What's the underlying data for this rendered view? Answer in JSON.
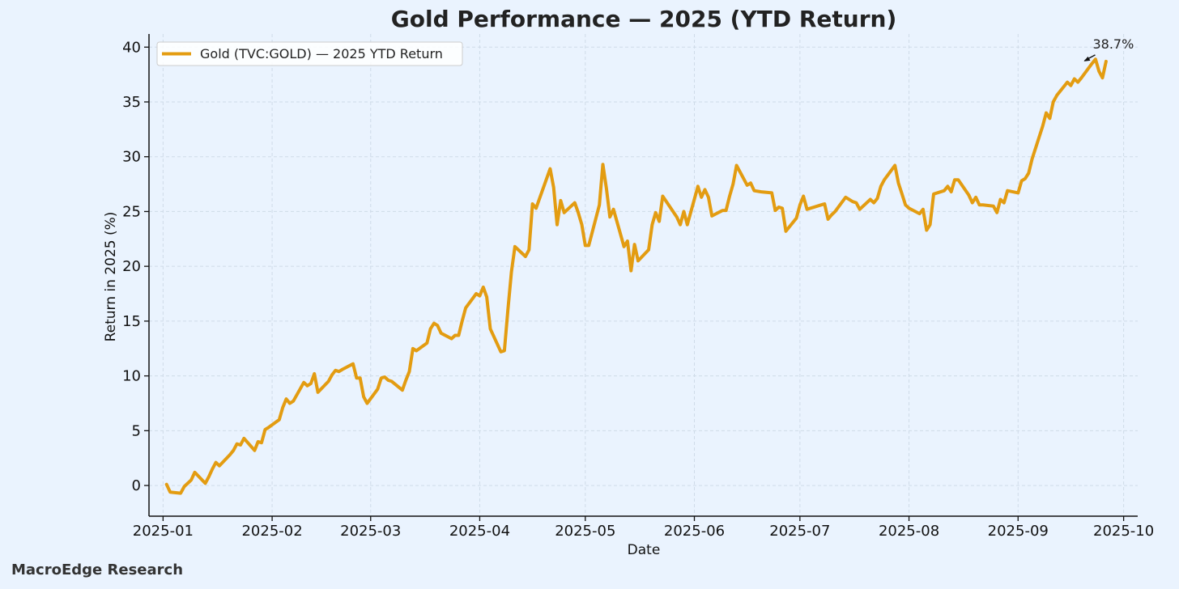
{
  "footer": {
    "text": "MacroEdge Research"
  },
  "chart_data": {
    "type": "line",
    "title": "Gold Performance — 2025 (YTD Return)",
    "xlabel": "Date",
    "ylabel": "Return in 2025 (%)",
    "ylim": [
      -2.8,
      41.2
    ],
    "xlim": [
      "2024-12-28",
      "2025-10-05"
    ],
    "x_ticks": [
      "2025-01-01",
      "2025-02-01",
      "2025-03-01",
      "2025-04-01",
      "2025-05-01",
      "2025-06-01",
      "2025-07-01",
      "2025-08-01",
      "2025-09-01",
      "2025-10-01"
    ],
    "x_tick_labels": [
      "2025-01",
      "2025-02",
      "2025-03",
      "2025-04",
      "2025-05",
      "2025-06",
      "2025-07",
      "2025-08",
      "2025-09",
      "2025-10"
    ],
    "y_ticks": [
      0,
      5,
      10,
      15,
      20,
      25,
      30,
      35,
      40
    ],
    "y_tick_labels": [
      "0",
      "5",
      "10",
      "15",
      "20",
      "25",
      "30",
      "35",
      "40"
    ],
    "grid": true,
    "legend": {
      "placement": "top-left"
    },
    "colors": {
      "line": "#e39c11",
      "background": "#eaf3fe",
      "grid": "#cfdbe8",
      "axis": "#111111"
    },
    "annotation": {
      "text": "38.7%",
      "x": "2025-09-19",
      "y": 38.7
    },
    "series": [
      {
        "name": "Gold (TVC:GOLD) — 2025 YTD Return",
        "points": [
          [
            "2025-01-02",
            0.1
          ],
          [
            "2025-01-03",
            -0.6
          ],
          [
            "2025-01-06",
            -0.7
          ],
          [
            "2025-01-07",
            -0.1
          ],
          [
            "2025-01-08",
            0.2
          ],
          [
            "2025-01-09",
            0.5
          ],
          [
            "2025-01-10",
            1.2
          ],
          [
            "2025-01-13",
            0.2
          ],
          [
            "2025-01-14",
            0.8
          ],
          [
            "2025-01-15",
            1.5
          ],
          [
            "2025-01-16",
            2.1
          ],
          [
            "2025-01-17",
            1.8
          ],
          [
            "2025-01-20",
            2.8
          ],
          [
            "2025-01-21",
            3.2
          ],
          [
            "2025-01-22",
            3.8
          ],
          [
            "2025-01-23",
            3.7
          ],
          [
            "2025-01-24",
            4.3
          ],
          [
            "2025-01-27",
            3.2
          ],
          [
            "2025-01-28",
            4.0
          ],
          [
            "2025-01-29",
            3.9
          ],
          [
            "2025-01-30",
            5.1
          ],
          [
            "2025-01-31",
            5.3
          ],
          [
            "2025-02-03",
            6.0
          ],
          [
            "2025-02-04",
            7.1
          ],
          [
            "2025-02-05",
            7.9
          ],
          [
            "2025-02-06",
            7.5
          ],
          [
            "2025-02-07",
            7.7
          ],
          [
            "2025-02-10",
            9.4
          ],
          [
            "2025-02-11",
            9.1
          ],
          [
            "2025-02-12",
            9.3
          ],
          [
            "2025-02-13",
            10.2
          ],
          [
            "2025-02-14",
            8.5
          ],
          [
            "2025-02-17",
            9.5
          ],
          [
            "2025-02-18",
            10.1
          ],
          [
            "2025-02-19",
            10.5
          ],
          [
            "2025-02-20",
            10.4
          ],
          [
            "2025-02-21",
            10.6
          ],
          [
            "2025-02-24",
            11.1
          ],
          [
            "2025-02-25",
            9.8
          ],
          [
            "2025-02-26",
            9.8
          ],
          [
            "2025-02-27",
            8.1
          ],
          [
            "2025-02-28",
            7.5
          ],
          [
            "2025-03-03",
            8.8
          ],
          [
            "2025-03-04",
            9.8
          ],
          [
            "2025-03-05",
            9.9
          ],
          [
            "2025-03-06",
            9.6
          ],
          [
            "2025-03-07",
            9.5
          ],
          [
            "2025-03-10",
            8.7
          ],
          [
            "2025-03-11",
            9.6
          ],
          [
            "2025-03-12",
            10.4
          ],
          [
            "2025-03-13",
            12.5
          ],
          [
            "2025-03-14",
            12.3
          ],
          [
            "2025-03-17",
            13.0
          ],
          [
            "2025-03-18",
            14.3
          ],
          [
            "2025-03-19",
            14.8
          ],
          [
            "2025-03-20",
            14.6
          ],
          [
            "2025-03-21",
            13.9
          ],
          [
            "2025-03-24",
            13.4
          ],
          [
            "2025-03-25",
            13.7
          ],
          [
            "2025-03-26",
            13.7
          ],
          [
            "2025-03-27",
            15.0
          ],
          [
            "2025-03-28",
            16.2
          ],
          [
            "2025-03-31",
            17.5
          ],
          [
            "2025-04-01",
            17.3
          ],
          [
            "2025-04-02",
            18.1
          ],
          [
            "2025-04-03",
            17.2
          ],
          [
            "2025-04-04",
            14.3
          ],
          [
            "2025-04-07",
            12.2
          ],
          [
            "2025-04-08",
            12.3
          ],
          [
            "2025-04-09",
            16.0
          ],
          [
            "2025-04-10",
            19.5
          ],
          [
            "2025-04-11",
            21.8
          ],
          [
            "2025-04-14",
            20.9
          ],
          [
            "2025-04-15",
            21.5
          ],
          [
            "2025-04-16",
            25.7
          ],
          [
            "2025-04-17",
            25.3
          ],
          [
            "2025-04-21",
            28.9
          ],
          [
            "2025-04-22",
            27.2
          ],
          [
            "2025-04-23",
            23.8
          ],
          [
            "2025-04-24",
            26.0
          ],
          [
            "2025-04-25",
            24.9
          ],
          [
            "2025-04-28",
            25.8
          ],
          [
            "2025-04-29",
            24.9
          ],
          [
            "2025-04-30",
            23.8
          ],
          [
            "2025-05-01",
            21.9
          ],
          [
            "2025-05-02",
            21.9
          ],
          [
            "2025-05-05",
            25.6
          ],
          [
            "2025-05-06",
            29.3
          ],
          [
            "2025-05-07",
            27.1
          ],
          [
            "2025-05-08",
            24.5
          ],
          [
            "2025-05-09",
            25.2
          ],
          [
            "2025-05-12",
            21.8
          ],
          [
            "2025-05-13",
            22.3
          ],
          [
            "2025-05-14",
            19.6
          ],
          [
            "2025-05-15",
            22.0
          ],
          [
            "2025-05-16",
            20.5
          ],
          [
            "2025-05-19",
            21.5
          ],
          [
            "2025-05-20",
            23.8
          ],
          [
            "2025-05-21",
            24.9
          ],
          [
            "2025-05-22",
            24.1
          ],
          [
            "2025-05-23",
            26.4
          ],
          [
            "2025-05-27",
            24.5
          ],
          [
            "2025-05-28",
            23.8
          ],
          [
            "2025-05-29",
            25.0
          ],
          [
            "2025-05-30",
            23.8
          ],
          [
            "2025-06-02",
            27.3
          ],
          [
            "2025-06-03",
            26.3
          ],
          [
            "2025-06-04",
            27.0
          ],
          [
            "2025-06-05",
            26.3
          ],
          [
            "2025-06-06",
            24.6
          ],
          [
            "2025-06-09",
            25.1
          ],
          [
            "2025-06-10",
            25.1
          ],
          [
            "2025-06-11",
            26.4
          ],
          [
            "2025-06-12",
            27.5
          ],
          [
            "2025-06-13",
            29.2
          ],
          [
            "2025-06-16",
            27.4
          ],
          [
            "2025-06-17",
            27.6
          ],
          [
            "2025-06-18",
            26.9
          ],
          [
            "2025-06-20",
            26.8
          ],
          [
            "2025-06-23",
            26.7
          ],
          [
            "2025-06-24",
            25.1
          ],
          [
            "2025-06-25",
            25.4
          ],
          [
            "2025-06-26",
            25.3
          ],
          [
            "2025-06-27",
            23.2
          ],
          [
            "2025-06-30",
            24.4
          ],
          [
            "2025-07-01",
            25.6
          ],
          [
            "2025-07-02",
            26.4
          ],
          [
            "2025-07-03",
            25.2
          ],
          [
            "2025-07-07",
            25.6
          ],
          [
            "2025-07-08",
            25.7
          ],
          [
            "2025-07-09",
            24.3
          ],
          [
            "2025-07-10",
            24.7
          ],
          [
            "2025-07-11",
            25.0
          ],
          [
            "2025-07-14",
            26.3
          ],
          [
            "2025-07-16",
            25.9
          ],
          [
            "2025-07-17",
            25.8
          ],
          [
            "2025-07-18",
            25.2
          ],
          [
            "2025-07-21",
            26.1
          ],
          [
            "2025-07-22",
            25.8
          ],
          [
            "2025-07-23",
            26.2
          ],
          [
            "2025-07-24",
            27.3
          ],
          [
            "2025-07-25",
            27.9
          ],
          [
            "2025-07-28",
            29.2
          ],
          [
            "2025-07-29",
            27.6
          ],
          [
            "2025-07-30",
            26.6
          ],
          [
            "2025-07-31",
            25.6
          ],
          [
            "2025-08-01",
            25.3
          ],
          [
            "2025-08-04",
            24.8
          ],
          [
            "2025-08-05",
            25.2
          ],
          [
            "2025-08-06",
            23.3
          ],
          [
            "2025-08-07",
            23.8
          ],
          [
            "2025-08-08",
            26.6
          ],
          [
            "2025-08-11",
            26.9
          ],
          [
            "2025-08-12",
            27.3
          ],
          [
            "2025-08-13",
            26.8
          ],
          [
            "2025-08-14",
            27.9
          ],
          [
            "2025-08-15",
            27.9
          ],
          [
            "2025-08-18",
            26.5
          ],
          [
            "2025-08-19",
            25.8
          ],
          [
            "2025-08-20",
            26.3
          ],
          [
            "2025-08-21",
            25.6
          ],
          [
            "2025-08-22",
            25.6
          ],
          [
            "2025-08-25",
            25.5
          ],
          [
            "2025-08-26",
            24.9
          ],
          [
            "2025-08-27",
            26.1
          ],
          [
            "2025-08-28",
            25.8
          ],
          [
            "2025-08-29",
            26.9
          ],
          [
            "2025-09-01",
            26.7
          ],
          [
            "2025-09-02",
            27.8
          ],
          [
            "2025-09-03",
            28.0
          ],
          [
            "2025-09-04",
            28.5
          ],
          [
            "2025-09-05",
            29.8
          ],
          [
            "2025-09-08",
            32.8
          ],
          [
            "2025-09-09",
            34.0
          ],
          [
            "2025-09-10",
            33.5
          ],
          [
            "2025-09-11",
            35.0
          ],
          [
            "2025-09-12",
            35.6
          ],
          [
            "2025-09-15",
            36.8
          ],
          [
            "2025-09-16",
            36.5
          ],
          [
            "2025-09-17",
            37.1
          ],
          [
            "2025-09-18",
            36.8
          ],
          [
            "2025-09-19",
            37.2
          ],
          [
            "2025-09-22",
            38.5
          ],
          [
            "2025-09-23",
            38.9
          ],
          [
            "2025-09-24",
            37.8
          ],
          [
            "2025-09-25",
            37.2
          ],
          [
            "2025-09-26",
            38.7
          ]
        ]
      }
    ]
  }
}
